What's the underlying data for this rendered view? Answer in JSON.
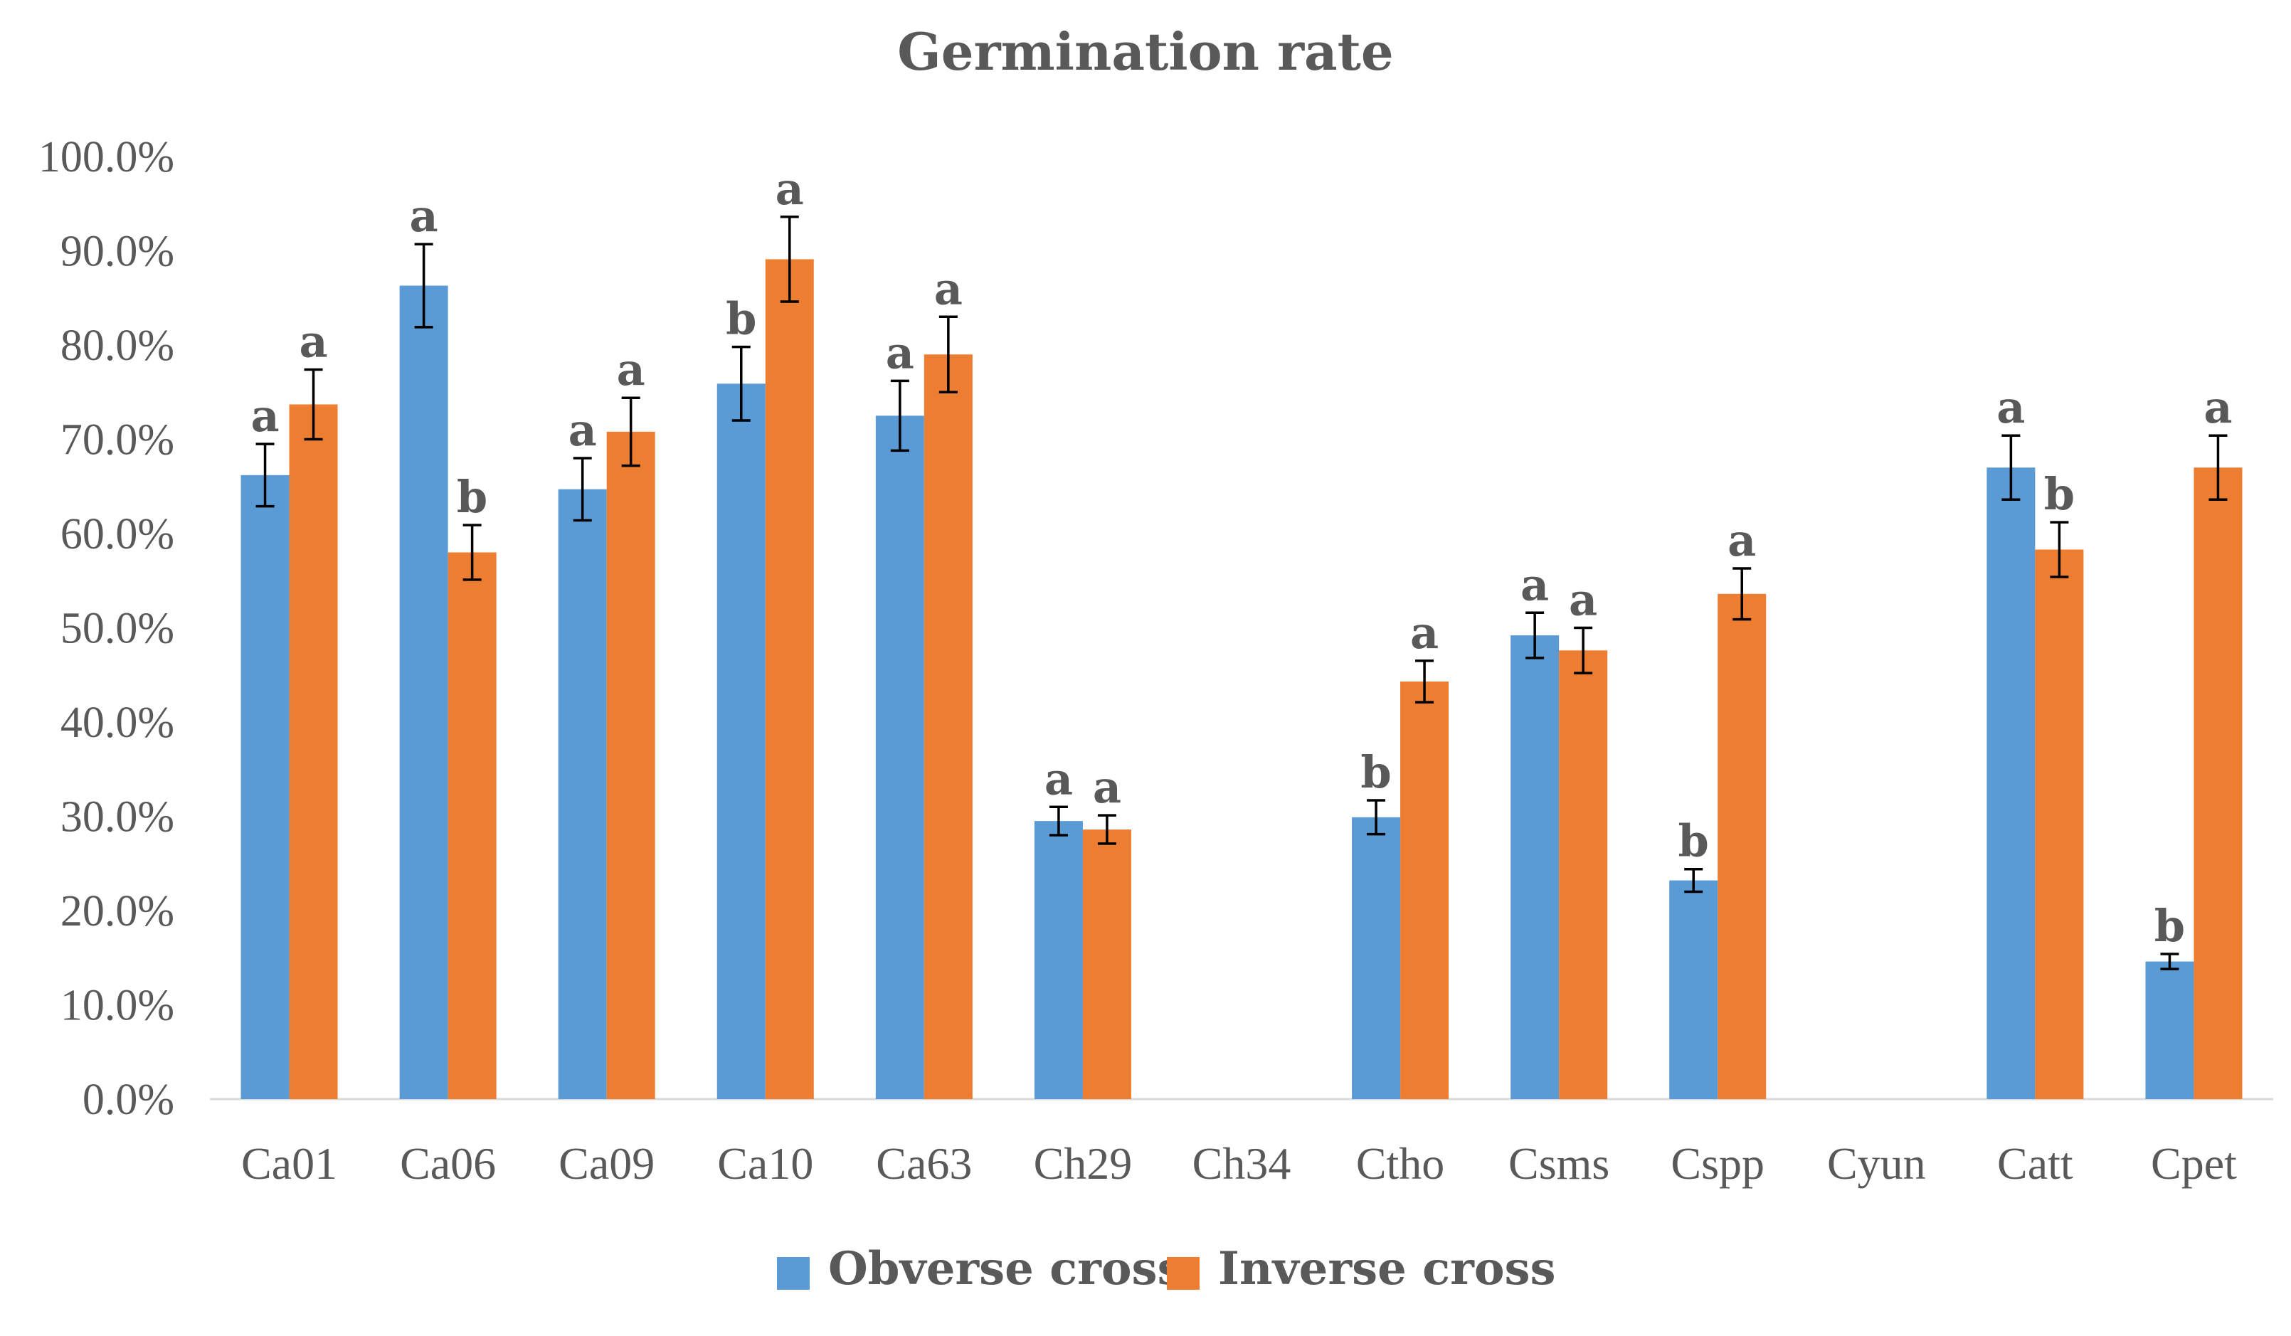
{
  "chart_data": {
    "type": "bar",
    "title": "Germination rate",
    "xlabel": "",
    "ylabel": "",
    "ylim": [
      0,
      100
    ],
    "y_tick_labels": [
      "0.0%",
      "10.0%",
      "20.0%",
      "30.0%",
      "40.0%",
      "50.0%",
      "60.0%",
      "70.0%",
      "80.0%",
      "90.0%",
      "100.0%"
    ],
    "grid": false,
    "legend_position": "bottom",
    "categories": [
      "Ca01",
      "Ca06",
      "Ca09",
      "Ca10",
      "Ca63",
      "Ch29",
      "Ch34",
      "Ctho",
      "Csms",
      "Cspp",
      "Cyun",
      "Catt",
      "Cpet"
    ],
    "series": [
      {
        "name": "Obverse cross",
        "color": "#5b9bd5",
        "values": [
          66.2,
          86.3,
          64.7,
          75.9,
          72.5,
          29.5,
          0,
          29.9,
          49.2,
          23.2,
          0,
          67.0,
          14.6
        ],
        "errors": [
          3.3,
          4.4,
          3.3,
          3.9,
          3.7,
          1.5,
          0,
          1.8,
          2.4,
          1.2,
          0,
          3.4,
          0.8
        ],
        "significance": [
          "a",
          "a",
          "a",
          "b",
          "a",
          "a",
          "",
          "b",
          "a",
          "b",
          "",
          "a",
          "b"
        ]
      },
      {
        "name": "Inverse cross",
        "color": "#ed7d31",
        "values": [
          73.7,
          58.0,
          70.8,
          89.1,
          79.0,
          28.6,
          0,
          44.3,
          47.6,
          53.6,
          0,
          58.3,
          67.0
        ],
        "errors": [
          3.7,
          2.9,
          3.6,
          4.5,
          4.0,
          1.5,
          0,
          2.2,
          2.4,
          2.7,
          0,
          2.9,
          3.4
        ],
        "significance": [
          "a",
          "b",
          "a",
          "a",
          "a",
          "a",
          "",
          "a",
          "a",
          "a",
          "",
          "b",
          "a"
        ]
      }
    ]
  }
}
